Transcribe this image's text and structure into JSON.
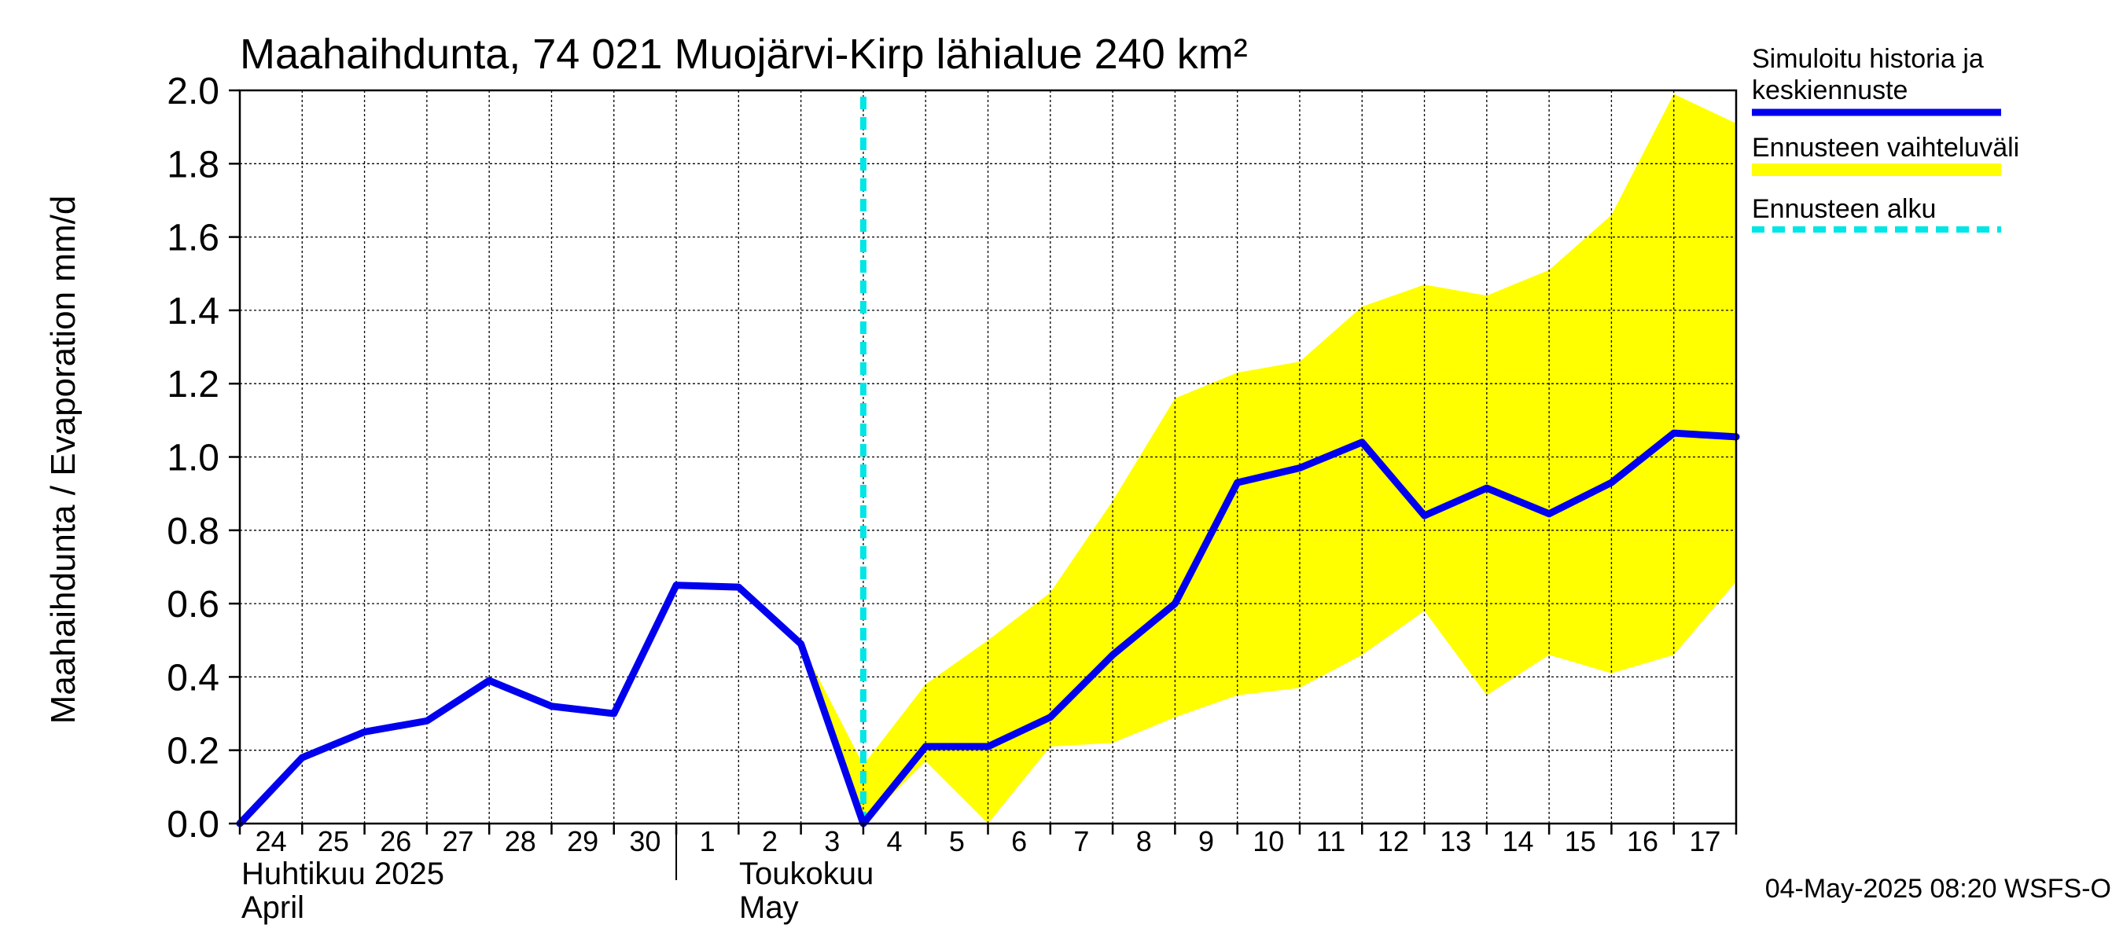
{
  "chart_data": {
    "type": "line",
    "title": "Maahaihdunta, 74 021 Muojärvi-Kirp lähialue 240 km²",
    "ylabel": "Maahaihdunta / Evaporation   mm/d",
    "ylim": [
      0,
      2.0
    ],
    "yticks": [
      "0.0",
      "0.2",
      "0.4",
      "0.6",
      "0.8",
      "1.0",
      "1.2",
      "1.4",
      "1.6",
      "1.8",
      "2.0"
    ],
    "x_day_labels": [
      "24",
      "25",
      "26",
      "27",
      "28",
      "29",
      "30",
      "1",
      "2",
      "3",
      "4",
      "5",
      "6",
      "7",
      "8",
      "9",
      "10",
      "11",
      "12",
      "13",
      "14",
      "15",
      "16",
      "17"
    ],
    "month_labels": {
      "april_fi": "Huhtikuu  2025",
      "april_en": "April",
      "may_fi": "Toukokuu",
      "may_en": "May"
    },
    "forecast_start_day_index": 10,
    "series": [
      {
        "name": "Simuloitu historia ja keskiennuste",
        "color": "#0000ee",
        "values": [
          0.0,
          0.18,
          0.25,
          0.28,
          0.39,
          0.32,
          0.3,
          0.65,
          0.645,
          0.49,
          0.0,
          0.21,
          0.21,
          0.29,
          0.46,
          0.6,
          0.93,
          0.97,
          1.04,
          0.84,
          0.915,
          0.845,
          0.93,
          1.065,
          1.055
        ]
      }
    ],
    "band": {
      "name": "Ennusteen vaihteluväli",
      "color": "#ffff00",
      "start_index": 9,
      "upper": [
        0.49,
        0.16,
        0.38,
        0.5,
        0.63,
        0.88,
        1.16,
        1.23,
        1.26,
        1.41,
        1.47,
        1.44,
        1.51,
        1.66,
        1.99,
        1.91
      ],
      "lower": [
        0.49,
        0.0,
        0.17,
        0.0,
        0.21,
        0.22,
        0.29,
        0.35,
        0.37,
        0.46,
        0.58,
        0.35,
        0.46,
        0.41,
        0.46,
        0.66
      ]
    },
    "legend": {
      "placement": "right",
      "items": [
        {
          "line1": "Simuloitu historia ja",
          "line2": "keskiennuste",
          "color": "#0000ee",
          "style": "solid"
        },
        {
          "line1": "Ennusteen vaihteluväli",
          "line2": "",
          "color": "#ffff00",
          "style": "solid"
        },
        {
          "line1": "Ennusteen alku",
          "line2": "",
          "color": "#00e5e5",
          "style": "dashed"
        }
      ]
    },
    "footer": "04-May-2025 08:20 WSFS-O"
  }
}
